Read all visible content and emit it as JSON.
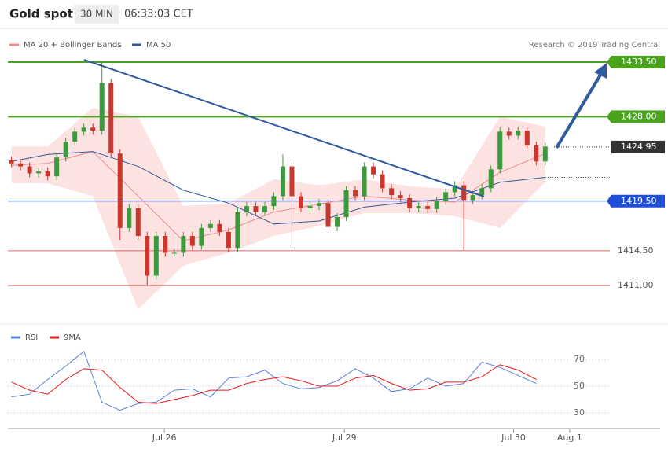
{
  "header": {
    "title": "Gold spot",
    "timeframe": "30 MIN",
    "time": "06:33:03 CET"
  },
  "chart_data": [
    {
      "type": "candlestick",
      "credit": "Research © 2019 Trading Central",
      "up_color": "#3c9a3c",
      "down_color": "#c8372d",
      "xlim": [
        0.6,
        72.7
      ],
      "ylim": [
        1408,
        1435
      ],
      "open": [
        1423.6,
        1423.3,
        1423.0,
        1422.3,
        1422.5,
        1422.0,
        1423.9,
        1425.5,
        1426.5,
        1426.9,
        1426.6,
        1431.4,
        1424.3,
        1416.8,
        1418.8,
        1416.0,
        1412.0,
        1416.0,
        1414.3,
        1414.3,
        1416.0,
        1415.0,
        1416.8,
        1417.2,
        1416.4,
        1414.8,
        1418.4,
        1419.0,
        1418.4,
        1419.0,
        1420.0,
        1423.0,
        1420.0,
        1418.8,
        1419.0,
        1419.3,
        1416.9,
        1417.9,
        1420.6,
        1420.0,
        1423.0,
        1422.2,
        1420.8,
        1420.1,
        1419.8,
        1418.8,
        1419.0,
        1418.7,
        1419.5,
        1420.4,
        1421.1,
        1419.6,
        1420.1,
        1420.8,
        1422.7,
        1426.5,
        1426.1,
        1426.6,
        1425.1,
        1423.5
      ],
      "high": [
        1424.0,
        1423.7,
        1423.4,
        1422.9,
        1422.9,
        1424.3,
        1425.9,
        1426.9,
        1427.3,
        1427.3,
        1433.5,
        1431.8,
        1424.7,
        1419.2,
        1419.2,
        1416.4,
        1416.4,
        1416.4,
        1414.7,
        1416.4,
        1416.4,
        1417.2,
        1417.6,
        1417.6,
        1416.8,
        1418.8,
        1419.4,
        1419.4,
        1419.4,
        1420.4,
        1424.2,
        1423.4,
        1420.4,
        1419.4,
        1419.7,
        1419.7,
        1418.3,
        1421.0,
        1421.0,
        1423.4,
        1423.4,
        1422.6,
        1421.2,
        1420.5,
        1420.2,
        1419.4,
        1419.4,
        1419.9,
        1420.8,
        1421.5,
        1421.5,
        1420.5,
        1421.2,
        1423.1,
        1426.9,
        1426.9,
        1427.0,
        1427.0,
        1425.5,
        1425.4
      ],
      "low": [
        1422.9,
        1422.6,
        1421.9,
        1421.9,
        1421.6,
        1421.6,
        1423.5,
        1425.1,
        1426.1,
        1426.2,
        1426.2,
        1423.9,
        1415.6,
        1416.4,
        1415.6,
        1411.0,
        1411.6,
        1413.9,
        1413.9,
        1413.9,
        1414.6,
        1414.6,
        1416.4,
        1416.0,
        1414.4,
        1414.4,
        1418.0,
        1418.0,
        1418.0,
        1418.6,
        1419.6,
        1414.8,
        1418.4,
        1418.4,
        1418.6,
        1416.5,
        1416.5,
        1417.5,
        1419.6,
        1419.6,
        1421.8,
        1420.4,
        1419.7,
        1419.4,
        1418.4,
        1418.4,
        1418.3,
        1418.3,
        1419.1,
        1420.0,
        1414.5,
        1419.2,
        1419.7,
        1420.4,
        1422.3,
        1425.7,
        1425.7,
        1424.7,
        1423.1,
        1423.1
      ],
      "close": [
        1423.3,
        1423.0,
        1422.3,
        1422.5,
        1422.0,
        1423.9,
        1425.5,
        1426.5,
        1426.9,
        1426.6,
        1431.4,
        1424.3,
        1416.8,
        1418.8,
        1416.0,
        1412.0,
        1416.0,
        1414.3,
        1414.3,
        1416.0,
        1415.0,
        1416.8,
        1417.2,
        1416.4,
        1414.8,
        1418.4,
        1419.0,
        1418.4,
        1419.0,
        1420.0,
        1423.0,
        1420.0,
        1418.8,
        1419.0,
        1419.3,
        1416.9,
        1417.9,
        1420.6,
        1420.0,
        1423.0,
        1422.2,
        1420.8,
        1420.1,
        1419.8,
        1418.8,
        1419.0,
        1418.7,
        1419.5,
        1420.4,
        1421.1,
        1419.6,
        1420.1,
        1420.8,
        1422.7,
        1426.5,
        1426.1,
        1426.6,
        1425.1,
        1423.5,
        1425.0
      ],
      "overlays": [
        {
          "name": "MA 20 + Bollinger Bands",
          "color": "#f08a8a",
          "band_color": "#fde2e2",
          "x": [
            1,
            5,
            10,
            15,
            20,
            25,
            30,
            35,
            40,
            45,
            50,
            55,
            60
          ],
          "values": [
            1423.1,
            1423.3,
            1424.5,
            1420.0,
            1415.5,
            1416.6,
            1418.4,
            1419.2,
            1420.0,
            1419.6,
            1419.4,
            1422.4,
            1424.3
          ],
          "upper": [
            1425.0,
            1425.0,
            1428.9,
            1428.0,
            1419.0,
            1419.3,
            1421.7,
            1421.1,
            1421.7,
            1421.0,
            1420.7,
            1428.0,
            1427.0
          ],
          "lower": [
            1421.3,
            1421.3,
            1420.0,
            1408.6,
            1413.0,
            1414.3,
            1416.0,
            1417.0,
            1418.3,
            1418.3,
            1418.0,
            1416.8,
            1421.4
          ]
        },
        {
          "name": "MA 50",
          "color": "#2f5a9e",
          "x": [
            1,
            5,
            10,
            15,
            20,
            25,
            30,
            35,
            40,
            45,
            50,
            55,
            60
          ],
          "values": [
            1423.5,
            1424.2,
            1424.5,
            1423.0,
            1420.6,
            1419.3,
            1417.2,
            1417.5,
            1418.9,
            1419.4,
            1419.8,
            1421.4,
            1421.9
          ]
        }
      ],
      "levels": [
        {
          "value": 1433.5,
          "label": "1433.50",
          "color": "#4aa31c",
          "style": "box"
        },
        {
          "value": 1428,
          "label": "1428.00",
          "color": "#4aa31c",
          "style": "box"
        },
        {
          "value": 1424.95,
          "label": "1424.95",
          "color": "#333333",
          "style": "current"
        },
        {
          "value": 1419.5,
          "label": "1419.50",
          "color": "#1f4fd6",
          "style": "box"
        },
        {
          "value": 1414.5,
          "label": "1414.50",
          "color": "#e06a6a",
          "style": "text"
        },
        {
          "value": 1411,
          "label": "1411.00",
          "color": "#e06a6a",
          "style": "text"
        }
      ]
    },
    {
      "type": "line",
      "xlim": [
        0.6,
        72.7
      ],
      "ylim": [
        20,
        80
      ],
      "yticks": [
        30,
        50,
        70
      ],
      "xticks": [
        {
          "value": 17.9,
          "label": "Jul 26"
        },
        {
          "value": 37.8,
          "label": "Jul 29"
        },
        {
          "value": 56.5,
          "label": "Jul 30"
        },
        {
          "value": 62.7,
          "label": "Aug 1"
        }
      ],
      "x": [
        1,
        3,
        5,
        7,
        9,
        11,
        13,
        15,
        17,
        19,
        21,
        23,
        25,
        27,
        29,
        31,
        33,
        35,
        37,
        39,
        41,
        43,
        45,
        47,
        49,
        51,
        53,
        55,
        57,
        59
      ],
      "series": [
        {
          "name": "RSI",
          "color": "#5b7fdb",
          "values": [
            42,
            44,
            55,
            65,
            76,
            38,
            32,
            37,
            38,
            47,
            48,
            42,
            56,
            57,
            62,
            52,
            48,
            49,
            54,
            63,
            56,
            46,
            48,
            56,
            50,
            52,
            68,
            64,
            58,
            52
          ]
        },
        {
          "name": "9MA",
          "color": "#e31a1c",
          "values": [
            53,
            47,
            44,
            55,
            63,
            62,
            49,
            38,
            37,
            40,
            43,
            47,
            47,
            52,
            55,
            57,
            54,
            50,
            50,
            56,
            58,
            52,
            47,
            48,
            53,
            53,
            57,
            66,
            62,
            55
          ]
        }
      ]
    }
  ]
}
